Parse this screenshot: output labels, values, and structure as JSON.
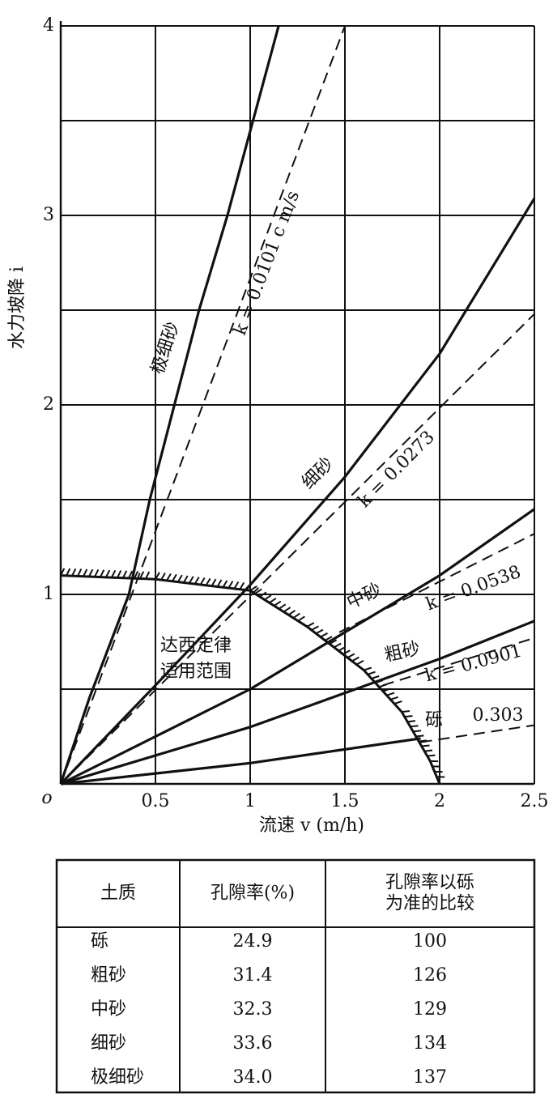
{
  "chart_data": {
    "type": "line",
    "x_label": "流速 v (m/h)",
    "y_label": "水力坡降 i",
    "origin_label": "o",
    "xlim": [
      0,
      2.5
    ],
    "ylim": [
      0,
      4
    ],
    "xticks": [
      0.5,
      1,
      1.5,
      2,
      2.5
    ],
    "yticks": [
      1,
      2,
      3,
      4
    ],
    "ygrid_minor": [
      0.5,
      1.5,
      2.5,
      3.5
    ],
    "grid": true,
    "color": "#111111",
    "series": [
      {
        "name": "极细砂",
        "style": "solid",
        "x": [
          0,
          0.15,
          0.36,
          0.47,
          0.6,
          0.73,
          0.88,
          1.15
        ],
        "values": [
          0,
          0.45,
          1.0,
          1.5,
          2.0,
          2.5,
          3.0,
          4.0
        ]
      },
      {
        "name": "k = 0.0101 c m/s",
        "style": "dashed",
        "x": [
          0,
          1.5
        ],
        "values": [
          0,
          4
        ]
      },
      {
        "name": "细砂",
        "style": "solid",
        "x": [
          0,
          0.5,
          1,
          1.5,
          2,
          2.5
        ],
        "values": [
          0,
          0.52,
          1.05,
          1.62,
          2.27,
          3.09
        ]
      },
      {
        "name": "k = 0.0273",
        "style": "dashed",
        "x": [
          0,
          2.5
        ],
        "values": [
          0,
          2.48
        ]
      },
      {
        "name": "中砂",
        "style": "solid",
        "x": [
          0,
          1,
          2,
          2.5
        ],
        "values": [
          0,
          0.5,
          1.1,
          1.45
        ]
      },
      {
        "name": "k = 0.0538",
        "style": "dashed",
        "x": [
          1.47,
          2.5
        ],
        "values": [
          0.8,
          1.32
        ]
      },
      {
        "name": "粗砂",
        "style": "solid",
        "x": [
          0,
          1,
          2,
          2.5
        ],
        "values": [
          0,
          0.3,
          0.66,
          0.86
        ]
      },
      {
        "name": "k = 0.0901",
        "style": "dashed",
        "x": [
          1.7,
          2.5
        ],
        "values": [
          0.52,
          0.77
        ]
      },
      {
        "name": "砾",
        "style": "solid",
        "x": [
          0,
          1,
          1.9
        ],
        "values": [
          0,
          0.11,
          0.24
        ]
      },
      {
        "name": "0.303",
        "style": "dashed",
        "x": [
          1.9,
          2.5
        ],
        "values": [
          0.22,
          0.31
        ]
      },
      {
        "style": "boundary",
        "x": [
          0,
          0.5,
          1,
          1.3,
          1.6,
          1.8,
          1.95,
          2
        ],
        "values": [
          1.1,
          1.08,
          1.02,
          0.83,
          0.6,
          0.38,
          0.12,
          0
        ]
      },
      {
        "style": "dashdot",
        "x": [
          2,
          2
        ],
        "values": [
          1.4,
          0
        ]
      }
    ],
    "boundary_label": [
      "达西定律",
      "适用范围"
    ]
  },
  "table": {
    "header": [
      [
        "土质"
      ],
      [
        "孔隙率(%)"
      ],
      [
        "孔隙率以砾",
        "为准的比较"
      ]
    ],
    "rows": [
      [
        "砾",
        "24.9",
        "100"
      ],
      [
        "粗砂",
        "31.4",
        "126"
      ],
      [
        "中砂",
        "32.3",
        "129"
      ],
      [
        "细砂",
        "33.6",
        "134"
      ],
      [
        "极细砂",
        "34.0",
        "137"
      ]
    ]
  }
}
